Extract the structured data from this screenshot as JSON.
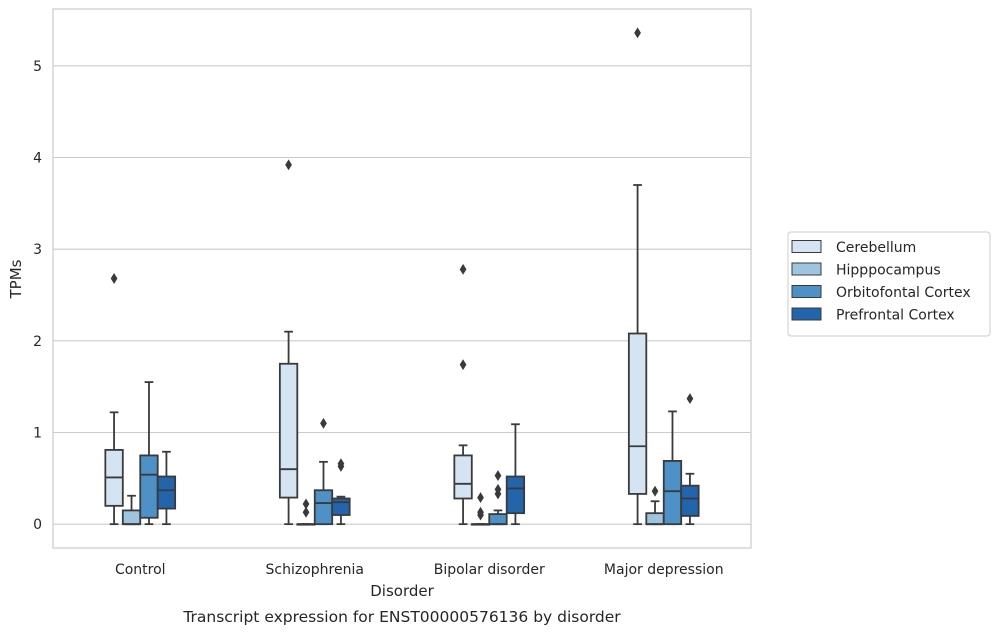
{
  "chart_data": {
    "type": "box",
    "caption": "Transcript expression for ENST00000576136 by disorder",
    "xlabel": "Disorder",
    "ylabel": "TPMs",
    "ylim": [
      -0.26,
      5.62
    ],
    "yticks": [
      "0",
      "1",
      "2",
      "3",
      "4",
      "5"
    ],
    "grid": true,
    "legend_position": "right",
    "categories": [
      "Control",
      "Schizophrenia",
      "Bipolar disorder",
      "Major depression"
    ],
    "series": [
      {
        "name": "Cerebellum",
        "color": "#d4e4f3",
        "boxes": [
          {
            "min": 0.0,
            "q1": 0.2,
            "median": 0.51,
            "q3": 0.81,
            "max": 1.22,
            "outliers": [
              2.68
            ]
          },
          {
            "min": 0.0,
            "q1": 0.29,
            "median": 0.6,
            "q3": 1.75,
            "max": 2.1,
            "outliers": [
              3.92
            ]
          },
          {
            "min": 0.0,
            "q1": 0.28,
            "median": 0.44,
            "q3": 0.75,
            "max": 0.86,
            "outliers": [
              1.74,
              2.78
            ]
          },
          {
            "min": 0.0,
            "q1": 0.33,
            "median": 0.85,
            "q3": 2.08,
            "max": 3.7,
            "outliers": [
              5.36
            ]
          }
        ]
      },
      {
        "name": "Hipppocampus",
        "color": "#9ec5e0",
        "boxes": [
          {
            "min": 0.0,
            "q1": 0.0,
            "median": 0.0,
            "q3": 0.15,
            "max": 0.31,
            "outliers": []
          },
          {
            "min": 0.0,
            "q1": 0.0,
            "median": 0.0,
            "q3": 0.0,
            "max": 0.0,
            "outliers": [
              0.13,
              0.22
            ]
          },
          {
            "min": 0.0,
            "q1": 0.0,
            "median": 0.0,
            "q3": 0.0,
            "max": 0.0,
            "outliers": [
              0.1,
              0.13,
              0.29
            ]
          },
          {
            "min": 0.0,
            "q1": 0.0,
            "median": 0.0,
            "q3": 0.12,
            "max": 0.25,
            "outliers": [
              0.36
            ]
          }
        ]
      },
      {
        "name": "Orbitofontal Cortex",
        "color": "#4d91c6",
        "boxes": [
          {
            "min": 0.0,
            "q1": 0.07,
            "median": 0.54,
            "q3": 0.75,
            "max": 1.55,
            "outliers": []
          },
          {
            "min": 0.0,
            "q1": 0.0,
            "median": 0.23,
            "q3": 0.37,
            "max": 0.68,
            "outliers": [
              1.1
            ]
          },
          {
            "min": 0.0,
            "q1": 0.0,
            "median": 0.0,
            "q3": 0.11,
            "max": 0.15,
            "outliers": [
              0.33,
              0.38,
              0.53
            ]
          },
          {
            "min": 0.0,
            "q1": 0.0,
            "median": 0.36,
            "q3": 0.69,
            "max": 1.23,
            "outliers": []
          }
        ]
      },
      {
        "name": "Prefrontal Cortex",
        "color": "#2365ad",
        "boxes": [
          {
            "min": 0.0,
            "q1": 0.17,
            "median": 0.37,
            "q3": 0.52,
            "max": 0.79,
            "outliers": []
          },
          {
            "min": 0.0,
            "q1": 0.1,
            "median": 0.24,
            "q3": 0.28,
            "max": 0.3,
            "outliers": [
              0.63,
              0.66
            ]
          },
          {
            "min": 0.0,
            "q1": 0.12,
            "median": 0.39,
            "q3": 0.52,
            "max": 1.09,
            "outliers": []
          },
          {
            "min": 0.0,
            "q1": 0.09,
            "median": 0.28,
            "q3": 0.42,
            "max": 0.55,
            "outliers": [
              1.37
            ]
          }
        ]
      }
    ]
  }
}
